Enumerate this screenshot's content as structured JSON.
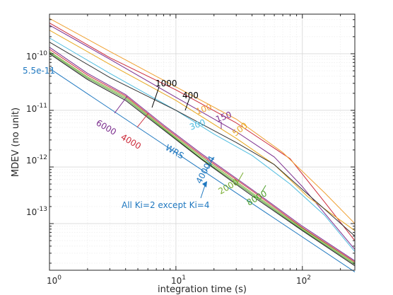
{
  "chart_data": {
    "type": "line",
    "xlabel": "integration time  (s)",
    "ylabel": "MDEV  (no unit)",
    "xscale": "log",
    "yscale": "log",
    "xlim": [
      1,
      260
    ],
    "ylim": [
      1.5e-14,
      5e-10
    ],
    "grid": true,
    "xticks": [
      {
        "value": 1,
        "base": "10",
        "exp": "0"
      },
      {
        "value": 10,
        "base": "10",
        "exp": "1"
      },
      {
        "value": 100,
        "base": "10",
        "exp": "2"
      }
    ],
    "yticks": [
      {
        "value": 1e-13,
        "base": "10",
        "exp": "-13"
      },
      {
        "value": 1e-12,
        "base": "10",
        "exp": "-12"
      },
      {
        "value": 1e-11,
        "base": "10",
        "exp": "-11"
      },
      {
        "value": 1e-10,
        "base": "10",
        "exp": "-10"
      }
    ],
    "series": [
      {
        "name": "400",
        "color": "#cc2b3a",
        "x": [
          1,
          3,
          10,
          30,
          80,
          150,
          260
        ],
        "y": [
          3.5e-10,
          8.5e-11,
          2.3e-11,
          6e-12,
          1.4e-12,
          2.4e-13,
          5e-14
        ]
      },
      {
        "name": "100",
        "color": "#f0a030",
        "x": [
          1,
          3,
          10,
          30,
          70,
          150,
          260
        ],
        "y": [
          4.2e-10,
          1.1e-10,
          2.6e-11,
          7e-12,
          1.8e-12,
          3.5e-13,
          1e-13
        ]
      },
      {
        "name": "150",
        "color": "#7b2d8e",
        "x": [
          1,
          3,
          10,
          30,
          60,
          100,
          260
        ],
        "y": [
          3.2e-10,
          8e-11,
          1.7e-11,
          4.2e-12,
          1.5e-12,
          4.5e-13,
          3.5e-14
        ]
      },
      {
        "name": "500",
        "color": "#e8a820",
        "x": [
          1,
          3,
          10,
          30,
          60,
          110,
          260
        ],
        "y": [
          2.6e-10,
          6.5e-11,
          1.5e-11,
          3.2e-12,
          1.1e-12,
          3e-13,
          7.5e-14
        ]
      },
      {
        "name": "300",
        "color": "#4fbde0",
        "x": [
          1,
          3,
          10,
          20,
          40,
          80,
          150,
          260
        ],
        "y": [
          1.9e-10,
          4.5e-11,
          1e-11,
          3.8e-12,
          1.6e-12,
          5e-13,
          1.4e-13,
          3.2e-14
        ]
      },
      {
        "name": "1000",
        "color": "#333333",
        "x": [
          1,
          3,
          10,
          30,
          60,
          120,
          260
        ],
        "y": [
          1.6e-10,
          3.8e-11,
          1e-11,
          2.7e-12,
          1.1e-12,
          2.8e-13,
          6e-14
        ]
      },
      {
        "name": "6000",
        "color": "#7b2d8e",
        "x": [
          1,
          2,
          4,
          8,
          16,
          40,
          100,
          260
        ],
        "y": [
          1.3e-10,
          4.5e-11,
          1.9e-11,
          5.5e-12,
          1.7e-12,
          4e-13,
          9e-14,
          2.2e-14
        ]
      },
      {
        "name": "4000",
        "color": "#cc2b3a",
        "x": [
          1,
          2,
          4,
          8,
          16,
          40,
          100,
          260
        ],
        "y": [
          1.2e-10,
          4.2e-11,
          1.8e-11,
          5.2e-12,
          1.6e-12,
          3.8e-13,
          8.5e-14,
          2.1e-14
        ]
      },
      {
        "name": "2000",
        "color": "#77ac30",
        "x": [
          1,
          2,
          4,
          8,
          16,
          40,
          100,
          260
        ],
        "y": [
          1.1e-10,
          3.9e-11,
          1.7e-11,
          4.9e-12,
          1.5e-12,
          3.5e-13,
          8.2e-14,
          2e-14
        ]
      },
      {
        "name": "8000",
        "color": "#4d9e2a",
        "x": [
          1,
          2,
          4,
          8,
          16,
          40,
          100,
          260
        ],
        "y": [
          1.05e-10,
          3.7e-11,
          1.6e-11,
          4.7e-12,
          1.4e-12,
          3.3e-13,
          7.8e-14,
          1.9e-14
        ]
      },
      {
        "name": "4000/4",
        "color": "#1a1a1a",
        "x": [
          1,
          2,
          4,
          8,
          16,
          40,
          100,
          260
        ],
        "y": [
          1e-10,
          3.5e-11,
          1.5e-11,
          4.5e-12,
          1.35e-12,
          3.1e-13,
          7.5e-14,
          1.8e-14
        ]
      },
      {
        "name": "WRS",
        "color": "#1f78c0",
        "x": [
          1,
          260
        ],
        "y": [
          5.5e-11,
          1.4e-14
        ]
      }
    ],
    "annotations": [
      {
        "text": "5.5e-11",
        "color": "#1f78c0"
      },
      {
        "text": "1000",
        "color": "#000000"
      },
      {
        "text": "400",
        "color": "#000000"
      },
      {
        "text": "100",
        "color": "#f0a030"
      },
      {
        "text": "150",
        "color": "#7b2d8e"
      },
      {
        "text": "500",
        "color": "#e8a820"
      },
      {
        "text": "300",
        "color": "#4fbde0"
      },
      {
        "text": "6000",
        "color": "#7b2d8e"
      },
      {
        "text": "4000",
        "color": "#cc2b3a"
      },
      {
        "text": "WRS",
        "color": "#1f78c0"
      },
      {
        "text": "4000/4",
        "color": "#1f78c0"
      },
      {
        "text": "2000",
        "color": "#77ac30"
      },
      {
        "text": "8000",
        "color": "#4d9e2a"
      },
      {
        "text": "All Ki=2 except Ki=4",
        "color": "#1f78c0"
      }
    ]
  }
}
